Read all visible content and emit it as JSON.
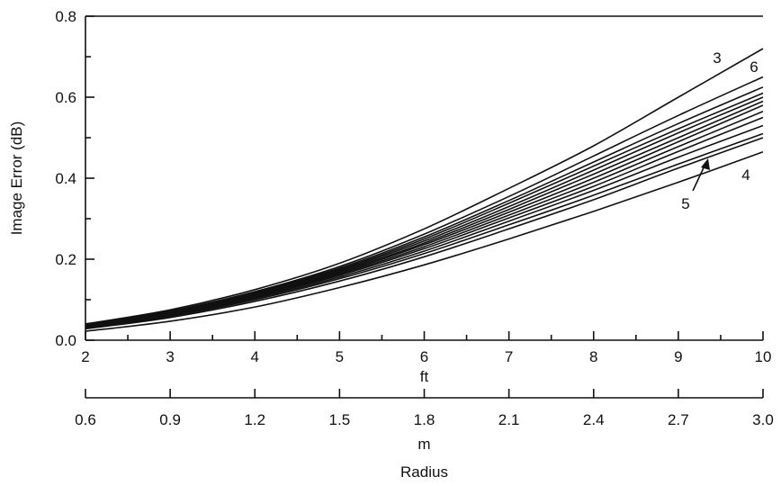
{
  "chart_data": {
    "type": "line",
    "title": "",
    "ylabel": "Image Error (dB)",
    "xlabel": "ft",
    "secondary_xlabel": "m",
    "shared_xlabel": "Radius",
    "xlim": [
      2,
      10
    ],
    "ylim": [
      0,
      0.8
    ],
    "x_ticks": [
      "2",
      "3",
      "4",
      "5",
      "6",
      "7",
      "8",
      "9",
      "10"
    ],
    "y_ticks": [
      "0.0",
      "0.2",
      "0.4",
      "0.6",
      "0.8"
    ],
    "secondary_x_ticks": [
      "0.6",
      "0.9",
      "1.2",
      "1.5",
      "1.8",
      "2.1",
      "2.4",
      "2.7",
      "3.0"
    ],
    "grid": false,
    "x": [
      2,
      3,
      4,
      5,
      6,
      7,
      8,
      9,
      10
    ],
    "series": [
      {
        "name": "3",
        "values": [
          0.04,
          0.075,
          0.125,
          0.19,
          0.275,
          0.375,
          0.48,
          0.6,
          0.72
        ]
      },
      {
        "name": "6",
        "values": [
          0.04,
          0.072,
          0.12,
          0.182,
          0.262,
          0.355,
          0.455,
          0.555,
          0.65
        ]
      },
      {
        "name": "",
        "values": [
          0.038,
          0.07,
          0.118,
          0.178,
          0.255,
          0.345,
          0.44,
          0.535,
          0.625
        ]
      },
      {
        "name": "",
        "values": [
          0.037,
          0.069,
          0.116,
          0.175,
          0.25,
          0.338,
          0.43,
          0.522,
          0.61
        ]
      },
      {
        "name": "",
        "values": [
          0.036,
          0.068,
          0.114,
          0.172,
          0.245,
          0.33,
          0.42,
          0.512,
          0.6
        ]
      },
      {
        "name": "",
        "values": [
          0.035,
          0.067,
          0.112,
          0.169,
          0.24,
          0.323,
          0.41,
          0.5,
          0.59
        ]
      },
      {
        "name": "",
        "values": [
          0.034,
          0.066,
          0.11,
          0.166,
          0.236,
          0.316,
          0.4,
          0.49,
          0.58
        ]
      },
      {
        "name": "",
        "values": [
          0.033,
          0.064,
          0.108,
          0.163,
          0.231,
          0.309,
          0.39,
          0.478,
          0.565
        ]
      },
      {
        "name": "",
        "values": [
          0.032,
          0.063,
          0.106,
          0.16,
          0.226,
          0.302,
          0.38,
          0.466,
          0.55
        ]
      },
      {
        "name": "",
        "values": [
          0.031,
          0.061,
          0.103,
          0.156,
          0.22,
          0.294,
          0.37,
          0.452,
          0.53
        ]
      },
      {
        "name": "5",
        "values": [
          0.03,
          0.059,
          0.1,
          0.152,
          0.214,
          0.285,
          0.358,
          0.435,
          0.51
        ]
      },
      {
        "name": "",
        "values": [
          0.028,
          0.056,
          0.096,
          0.146,
          0.206,
          0.275,
          0.347,
          0.425,
          0.5
        ]
      },
      {
        "name": "4",
        "values": [
          0.022,
          0.047,
          0.082,
          0.13,
          0.186,
          0.25,
          0.318,
          0.39,
          0.465
        ]
      }
    ],
    "annotations": [
      {
        "text": "3",
        "series": "3"
      },
      {
        "text": "6",
        "series": "6"
      },
      {
        "text": "5",
        "series": "5",
        "arrow": true
      },
      {
        "text": "4",
        "series": "4"
      }
    ]
  }
}
